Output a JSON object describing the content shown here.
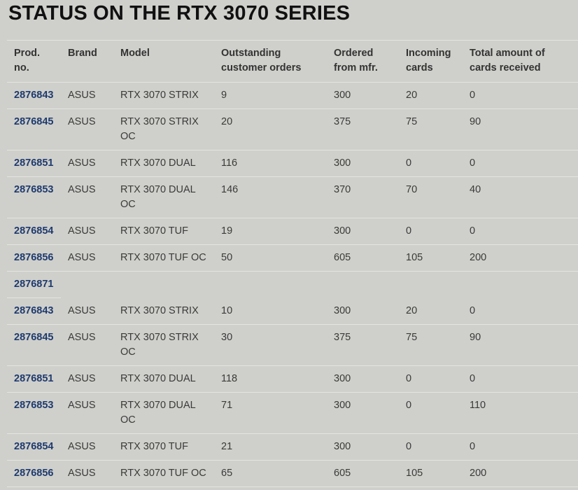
{
  "page_title": "STATUS ON THE RTX 3070 SERIES",
  "table": {
    "headers": [
      "Prod. no.",
      "Brand",
      "Model",
      "Outstanding customer orders",
      "Ordered from mfr.",
      "Incoming cards",
      "Total amount of cards received"
    ],
    "rows": [
      {
        "prod": "2876843",
        "brand": "ASUS",
        "model": "RTX 3070 STRIX",
        "outstanding": "9",
        "ordered": "300",
        "incoming": "20",
        "received": "0"
      },
      {
        "prod": "2876845",
        "brand": "ASUS",
        "model": "RTX 3070 STRIX OC",
        "outstanding": "20",
        "ordered": "375",
        "incoming": "75",
        "received": "90"
      },
      {
        "prod": "2876851",
        "brand": "ASUS",
        "model": "RTX 3070 DUAL",
        "outstanding": "116",
        "ordered": "300",
        "incoming": "0",
        "received": "0"
      },
      {
        "prod": "2876853",
        "brand": "ASUS",
        "model": "RTX 3070 DUAL OC",
        "outstanding": "146",
        "ordered": "370",
        "incoming": "70",
        "received": "40"
      },
      {
        "prod": "2876854",
        "brand": "ASUS",
        "model": "RTX 3070 TUF",
        "outstanding": "19",
        "ordered": "300",
        "incoming": "0",
        "received": "0"
      },
      {
        "prod": "2876856",
        "brand": "ASUS",
        "model": "RTX 3070 TUF OC",
        "outstanding": "50",
        "ordered": "605",
        "incoming": "105",
        "received": "200"
      },
      {
        "prod": "2876871",
        "brand": "",
        "model": "",
        "outstanding": "",
        "ordered": "",
        "incoming": "",
        "received": ""
      },
      {
        "prod": "2876843",
        "brand": "ASUS",
        "model": "RTX 3070 STRIX",
        "outstanding": "10",
        "ordered": "300",
        "incoming": "20",
        "received": "0"
      },
      {
        "prod": "2876845",
        "brand": "ASUS",
        "model": "RTX 3070 STRIX OC",
        "outstanding": "30",
        "ordered": "375",
        "incoming": "75",
        "received": "90"
      },
      {
        "prod": "2876851",
        "brand": "ASUS",
        "model": "RTX 3070 DUAL",
        "outstanding": "118",
        "ordered": "300",
        "incoming": "0",
        "received": "0"
      },
      {
        "prod": "2876853",
        "brand": "ASUS",
        "model": "RTX 3070 DUAL OC",
        "outstanding": "71",
        "ordered": "300",
        "incoming": "0",
        "received": "110"
      },
      {
        "prod": "2876854",
        "brand": "ASUS",
        "model": "RTX 3070 TUF",
        "outstanding": "21",
        "ordered": "300",
        "incoming": "0",
        "received": "0"
      },
      {
        "prod": "2876856",
        "brand": "ASUS",
        "model": "RTX 3070 TUF OC",
        "outstanding": "65",
        "ordered": "605",
        "incoming": "105",
        "received": "200"
      }
    ]
  },
  "colors": {
    "background": "#cfd0cb",
    "link": "#1f3a6e",
    "row_divider": "#e4e5e1"
  }
}
